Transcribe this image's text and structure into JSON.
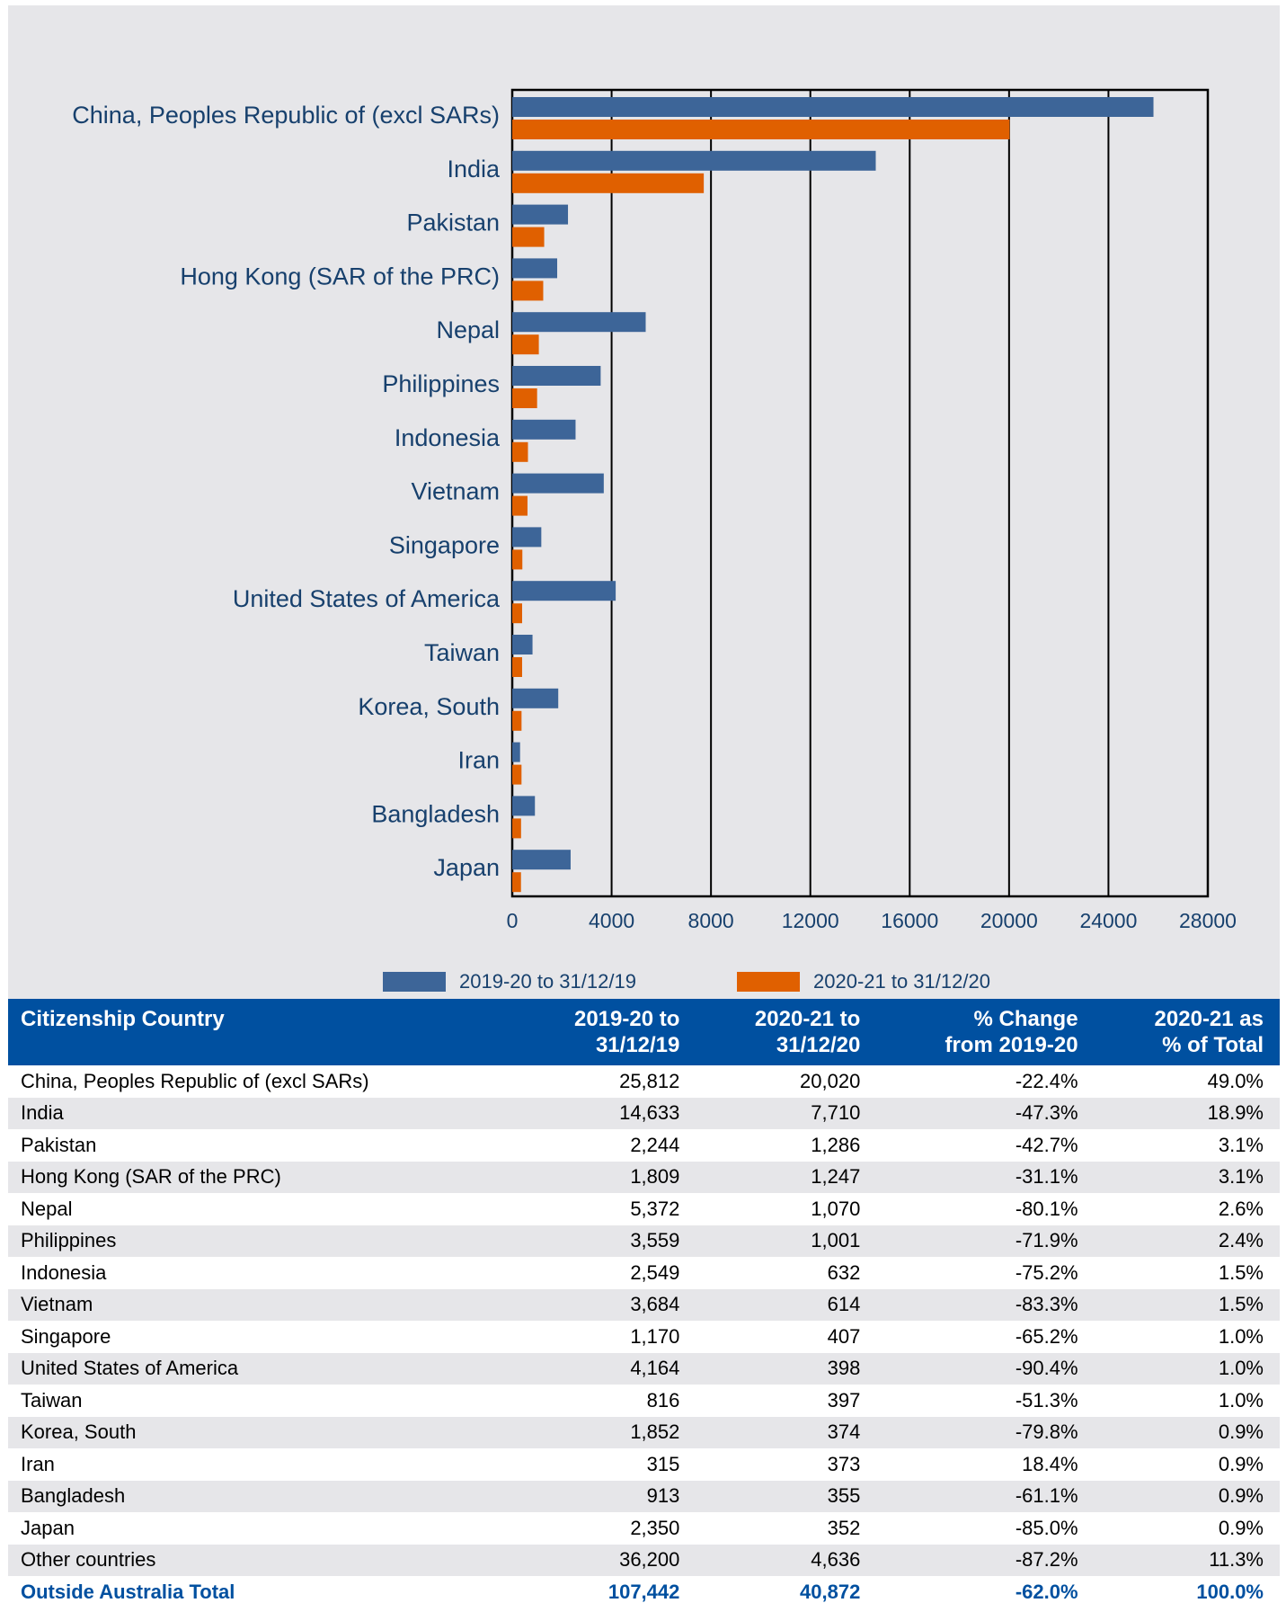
{
  "chart_data": {
    "type": "hbar",
    "categories": [
      "China, Peoples Republic of (excl SARs)",
      "India",
      "Pakistan",
      "Hong Kong (SAR of the PRC)",
      "Nepal",
      "Philippines",
      "Indonesia",
      "Vietnam",
      "Singapore",
      "United States of America",
      "Taiwan",
      "Korea, South",
      "Iran",
      "Bangladesh",
      "Japan"
    ],
    "series": [
      {
        "name": "2019-20 to 31/12/19",
        "color": "#3d6598",
        "values": [
          25812,
          14633,
          2244,
          1809,
          5372,
          3559,
          2549,
          3684,
          1170,
          4164,
          816,
          1852,
          315,
          913,
          2350
        ]
      },
      {
        "name": "2020-21 to 31/12/20",
        "color": "#e06000",
        "values": [
          20020,
          7710,
          1286,
          1247,
          1070,
          1001,
          632,
          614,
          407,
          398,
          397,
          374,
          373,
          355,
          352
        ]
      }
    ],
    "xlim": [
      0,
      28000
    ],
    "xticks": [
      0,
      4000,
      8000,
      12000,
      16000,
      20000,
      24000,
      28000
    ],
    "grid": true
  },
  "table": {
    "header": [
      "Citizenship Country",
      "2019-20 to\n31/12/19",
      "2020-21 to\n31/12/20",
      "% Change\nfrom 2019-20",
      "2020-21 as\n% of Total"
    ],
    "rows": [
      [
        "China, Peoples Republic of (excl SARs)",
        "25,812",
        "20,020",
        "-22.4%",
        "49.0%"
      ],
      [
        "India",
        "14,633",
        "7,710",
        "-47.3%",
        "18.9%"
      ],
      [
        "Pakistan",
        "2,244",
        "1,286",
        "-42.7%",
        "3.1%"
      ],
      [
        "Hong Kong (SAR of the PRC)",
        "1,809",
        "1,247",
        "-31.1%",
        "3.1%"
      ],
      [
        "Nepal",
        "5,372",
        "1,070",
        "-80.1%",
        "2.6%"
      ],
      [
        "Philippines",
        "3,559",
        "1,001",
        "-71.9%",
        "2.4%"
      ],
      [
        "Indonesia",
        "2,549",
        "632",
        "-75.2%",
        "1.5%"
      ],
      [
        "Vietnam",
        "3,684",
        "614",
        "-83.3%",
        "1.5%"
      ],
      [
        "Singapore",
        "1,170",
        "407",
        "-65.2%",
        "1.0%"
      ],
      [
        "United States of America",
        "4,164",
        "398",
        "-90.4%",
        "1.0%"
      ],
      [
        "Taiwan",
        "816",
        "397",
        "-51.3%",
        "1.0%"
      ],
      [
        "Korea, South",
        "1,852",
        "374",
        "-79.8%",
        "0.9%"
      ],
      [
        "Iran",
        "315",
        "373",
        "18.4%",
        "0.9%"
      ],
      [
        "Bangladesh",
        "913",
        "355",
        "-61.1%",
        "0.9%"
      ],
      [
        "Japan",
        "2,350",
        "352",
        "-85.0%",
        "0.9%"
      ],
      [
        "Other countries",
        "36,200",
        "4,636",
        "-87.2%",
        "11.3%"
      ]
    ],
    "total": [
      "Outside Australia Total",
      "107,442",
      "40,872",
      "-62.0%",
      "100.0%"
    ]
  }
}
